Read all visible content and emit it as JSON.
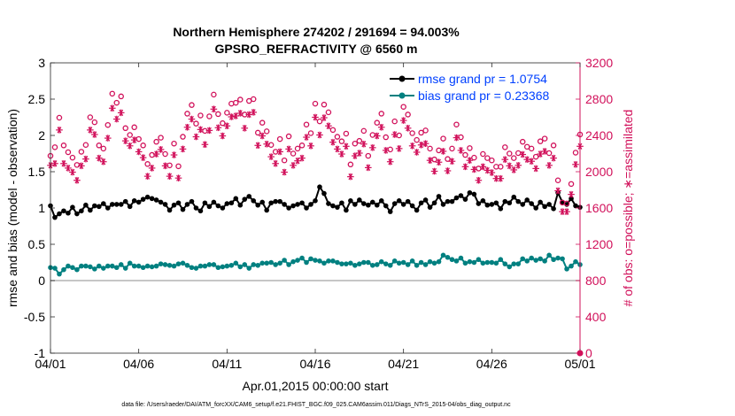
{
  "chart_data": {
    "type": "line",
    "title": "Northern Hemisphere 274202 / 291694 = 94.003%",
    "subtitle": "GPSRO_REFRACTIVITY @ 6560 m",
    "xlabel": "Apr.01,2015 00:00:00 start",
    "ylabel_left": "rmse and bias (model - observation)",
    "ylabel_right": "# of obs: o=possible; ∗=assimilated",
    "footer": "data file: /Users/raeder/DAI/ATM_forcXX/CAM6_setup/f.e21.FHIST_BGC.f09_025.CAM6assim.011/Diags_NTrS_2015-04/obs_diag_output.nc",
    "x_ticks": [
      "04/01",
      "04/06",
      "04/11",
      "04/16",
      "04/21",
      "04/26",
      "05/01"
    ],
    "x_range_days": [
      0,
      30
    ],
    "ylim_left": [
      -1,
      3
    ],
    "yticks_left": [
      "-1",
      "-0.5",
      "0",
      "0.5",
      "1",
      "1.5",
      "2",
      "2.5",
      "3"
    ],
    "ylim_right": [
      0,
      3200
    ],
    "yticks_right": [
      "0",
      "400",
      "800",
      "1200",
      "1600",
      "2000",
      "2400",
      "2800",
      "3200"
    ],
    "legend": [
      {
        "label": "rmse grand pr = 1.0754",
        "color": "#000000"
      },
      {
        "label": "bias grand pr = 0.23368",
        "color": "#008080"
      }
    ],
    "colors": {
      "rmse": "#000000",
      "bias": "#008080",
      "obs": "#d1105a",
      "legend_text": "#0040ff",
      "zero_line": "#b3b3b3"
    },
    "x_days": [
      0,
      0.25,
      0.5,
      0.75,
      1,
      1.25,
      1.5,
      1.75,
      2,
      2.25,
      2.5,
      2.75,
      3,
      3.25,
      3.5,
      3.75,
      4,
      4.25,
      4.5,
      4.75,
      5,
      5.25,
      5.5,
      5.75,
      6,
      6.25,
      6.5,
      6.75,
      7,
      7.25,
      7.5,
      7.75,
      8,
      8.25,
      8.5,
      8.75,
      9,
      9.25,
      9.5,
      9.75,
      10,
      10.25,
      10.5,
      10.75,
      11,
      11.25,
      11.5,
      11.75,
      12,
      12.25,
      12.5,
      12.75,
      13,
      13.25,
      13.5,
      13.75,
      14,
      14.25,
      14.5,
      14.75,
      15,
      15.25,
      15.5,
      15.75,
      16,
      16.25,
      16.5,
      16.75,
      17,
      17.25,
      17.5,
      17.75,
      18,
      18.25,
      18.5,
      18.75,
      19,
      19.25,
      19.5,
      19.75,
      20,
      20.25,
      20.5,
      20.75,
      21,
      21.25,
      21.5,
      21.75,
      22,
      22.25,
      22.5,
      22.75,
      23,
      23.25,
      23.5,
      23.75,
      24,
      24.25,
      24.5,
      24.75,
      25,
      25.25,
      25.5,
      25.75,
      26,
      26.25,
      26.5,
      26.75,
      27,
      27.25,
      27.5,
      27.75,
      28,
      28.25,
      28.5,
      28.75,
      29,
      29.25,
      29.5,
      29.75,
      30
    ],
    "series": [
      {
        "name": "rmse",
        "marker": "filled-circle",
        "values": [
          1.03,
          0.87,
          0.92,
          0.96,
          0.93,
          1.01,
          0.92,
          0.96,
          1.04,
          0.97,
          1.03,
          1.02,
          1.06,
          1.0,
          1.05,
          1.05,
          1.05,
          1.09,
          1.02,
          1.1,
          1.08,
          1.12,
          1.15,
          1.13,
          1.11,
          1.08,
          1.05,
          0.97,
          1.04,
          1.07,
          0.98,
          1.05,
          1.09,
          1.0,
          0.96,
          1.07,
          1.02,
          1.08,
          1.03,
          1.0,
          1.06,
          1.07,
          1.13,
          1.04,
          1.12,
          1.16,
          1.1,
          1.04,
          1.08,
          0.97,
          1.07,
          1.09,
          1.09,
          1.05,
          1.0,
          1.03,
          1.05,
          1.07,
          1.0,
          1.05,
          1.1,
          1.29,
          1.2,
          1.06,
          1.03,
          1.01,
          1.07,
          0.97,
          1.1,
          1.05,
          1.11,
          1.06,
          1.04,
          1.08,
          1.04,
          1.1,
          1.03,
          0.95,
          1.06,
          1.1,
          1.05,
          1.09,
          1.03,
          0.97,
          1.07,
          1.11,
          1.01,
          1.07,
          1.16,
          1.05,
          1.09,
          1.09,
          1.14,
          1.17,
          1.12,
          1.21,
          1.19,
          1.06,
          1.1,
          1.04,
          1.05,
          1.07,
          0.99,
          1.09,
          1.07,
          1.15,
          1.09,
          1.05,
          1.11,
          1.06,
          1.0,
          1.08,
          1.02,
          1.05,
          0.99,
          1.21,
          1.08,
          1.05,
          1.13,
          1.03,
          1.01
        ]
      },
      {
        "name": "bias",
        "marker": "filled-circle",
        "values": [
          0.18,
          0.17,
          0.09,
          0.15,
          0.2,
          0.18,
          0.15,
          0.2,
          0.2,
          0.19,
          0.16,
          0.2,
          0.17,
          0.2,
          0.2,
          0.18,
          0.22,
          0.17,
          0.24,
          0.2,
          0.2,
          0.18,
          0.2,
          0.19,
          0.2,
          0.23,
          0.22,
          0.21,
          0.2,
          0.23,
          0.24,
          0.21,
          0.18,
          0.17,
          0.2,
          0.2,
          0.22,
          0.22,
          0.18,
          0.19,
          0.2,
          0.21,
          0.24,
          0.19,
          0.22,
          0.17,
          0.22,
          0.21,
          0.24,
          0.24,
          0.25,
          0.22,
          0.24,
          0.28,
          0.22,
          0.26,
          0.28,
          0.31,
          0.25,
          0.3,
          0.28,
          0.27,
          0.24,
          0.27,
          0.27,
          0.25,
          0.23,
          0.23,
          0.24,
          0.21,
          0.23,
          0.25,
          0.25,
          0.21,
          0.22,
          0.26,
          0.23,
          0.21,
          0.27,
          0.24,
          0.25,
          0.22,
          0.27,
          0.21,
          0.25,
          0.22,
          0.26,
          0.24,
          0.26,
          0.35,
          0.32,
          0.29,
          0.27,
          0.31,
          0.24,
          0.26,
          0.25,
          0.29,
          0.24,
          0.25,
          0.25,
          0.24,
          0.29,
          0.23,
          0.19,
          0.23,
          0.23,
          0.3,
          0.27,
          0.31,
          0.28,
          0.3,
          0.27,
          0.35,
          0.29,
          0.31,
          0.3,
          0.16,
          0.2,
          0.26,
          0.22
        ]
      },
      {
        "name": "possible",
        "marker": "open-circle",
        "axis": "right",
        "values": [
          2175,
          2270,
          2595,
          2290,
          2215,
          2155,
          2075,
          2220,
          2295,
          2600,
          2545,
          2290,
          2255,
          2515,
          2860,
          2760,
          2830,
          2480,
          2405,
          2490,
          2360,
          2290,
          2085,
          2185,
          2330,
          2375,
          2195,
          2070,
          2310,
          2060,
          2385,
          2640,
          2735,
          2530,
          2620,
          2450,
          2610,
          2850,
          2635,
          2535,
          2650,
          2750,
          2760,
          2795,
          2630,
          2780,
          2800,
          2430,
          2540,
          2445,
          2295,
          2220,
          2360,
          2125,
          2390,
          2200,
          2255,
          2290,
          2520,
          2425,
          2750,
          2555,
          2740,
          2655,
          2460,
          2385,
          2335,
          2420,
          2080,
          2310,
          2340,
          2450,
          2175,
          2405,
          2540,
          2640,
          2380,
          2245,
          2555,
          2400,
          2715,
          2630,
          2425,
          2350,
          2430,
          2455,
          2255,
          2135,
          2235,
          2365,
          2140,
          2255,
          2520,
          2380,
          2185,
          2260,
          2155,
          2035,
          2195,
          2150,
          2125,
          2055,
          2055,
          2270,
          2200,
          2150,
          2205,
          2330,
          2275,
          2255,
          2165,
          2335,
          2365,
          2205,
          2290,
          1905,
          1660,
          1650,
          1865,
          2210,
          2410
        ]
      },
      {
        "name": "assimilated",
        "marker": "asterisk",
        "axis": "right",
        "values": [
          2070,
          2090,
          2460,
          2090,
          2040,
          1995,
          1905,
          2065,
          2140,
          2460,
          2410,
          2150,
          2110,
          2370,
          2700,
          2580,
          2650,
          2340,
          2285,
          2350,
          2220,
          2155,
          1950,
          2040,
          2195,
          2245,
          2065,
          1950,
          2185,
          1930,
          2250,
          2490,
          2580,
          2385,
          2465,
          2300,
          2455,
          2690,
          2485,
          2395,
          2505,
          2605,
          2615,
          2645,
          2480,
          2630,
          2655,
          2290,
          2395,
          2305,
          2165,
          2090,
          2220,
          1995,
          2250,
          2070,
          2120,
          2150,
          2380,
          2285,
          2600,
          2405,
          2595,
          2505,
          2325,
          2250,
          2195,
          2280,
          1945,
          2175,
          2205,
          2305,
          2045,
          2265,
          2395,
          2490,
          2235,
          2110,
          2410,
          2255,
          2565,
          2480,
          2285,
          2215,
          2295,
          2310,
          2125,
          2005,
          2105,
          2225,
          2010,
          2115,
          2375,
          2235,
          2055,
          2125,
          2025,
          1905,
          2055,
          2015,
          1990,
          1925,
          1925,
          2135,
          2065,
          2020,
          2070,
          2190,
          2135,
          2115,
          2035,
          2195,
          2225,
          2070,
          2150,
          1790,
          1560,
          1560,
          1750,
          2080,
          2280
        ]
      }
    ]
  }
}
